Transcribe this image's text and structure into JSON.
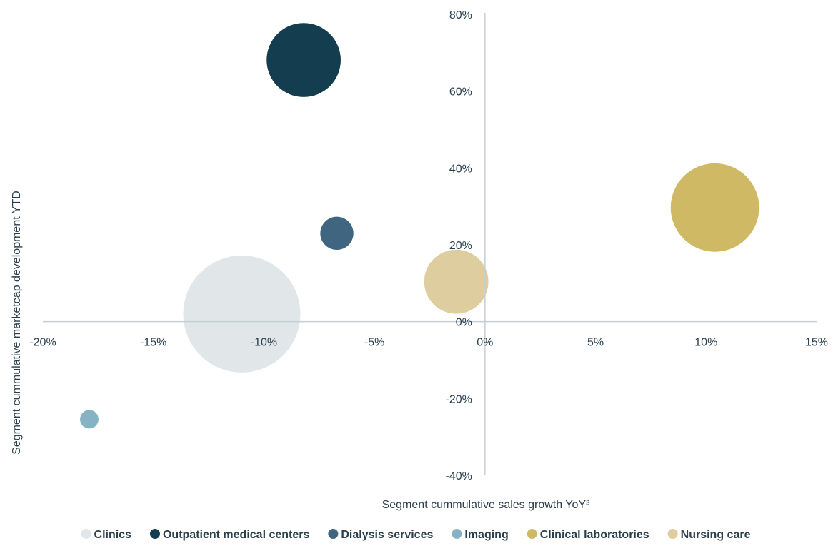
{
  "chart_data": {
    "type": "bubble",
    "x_label": "Segment cummulative sales growth YoY³",
    "y_label": "Segment cummulative marketcap development YTD",
    "xlim": [
      -20,
      15
    ],
    "xticks": [
      {
        "value": -20,
        "label": "-20%"
      },
      {
        "value": -15,
        "label": "-15%"
      },
      {
        "value": -10,
        "label": "-10%"
      },
      {
        "value": -5,
        "label": "-5%"
      },
      {
        "value": 0,
        "label": "0%"
      },
      {
        "value": 5,
        "label": "5%"
      },
      {
        "value": 10,
        "label": "10%"
      },
      {
        "value": 15,
        "label": "15%"
      }
    ],
    "ylim": [
      -40,
      80
    ],
    "yticks": [
      {
        "value": -40,
        "label": "-40%"
      },
      {
        "value": -20,
        "label": "-20%"
      },
      {
        "value": 0,
        "label": "0%"
      },
      {
        "value": 20,
        "label": "20%"
      },
      {
        "value": 40,
        "label": "40%"
      },
      {
        "value": 60,
        "label": "60%"
      },
      {
        "value": 80,
        "label": "80%"
      }
    ],
    "legend": "bottom",
    "series": [
      {
        "name": "Clinics",
        "color": "#e1e6e8",
        "x": -11.0,
        "y": 2.0,
        "size": 100
      },
      {
        "name": "Outpatient medical centers",
        "color": "#143d4f",
        "x": -8.2,
        "y": 68.1,
        "size": 40
      },
      {
        "name": "Dialysis services",
        "color": "#3f6581",
        "x": -6.7,
        "y": 23.0,
        "size": 8
      },
      {
        "name": "Imaging",
        "color": "#86b3c4",
        "x": -17.9,
        "y": -25.4,
        "size": 2.5
      },
      {
        "name": "Clinical laboratories",
        "color": "#cfb964",
        "x": 10.4,
        "y": 29.7,
        "size": 57
      },
      {
        "name": "Nursing care",
        "color": "#ddcd9f",
        "x": -1.3,
        "y": 10.4,
        "size": 30
      }
    ]
  }
}
